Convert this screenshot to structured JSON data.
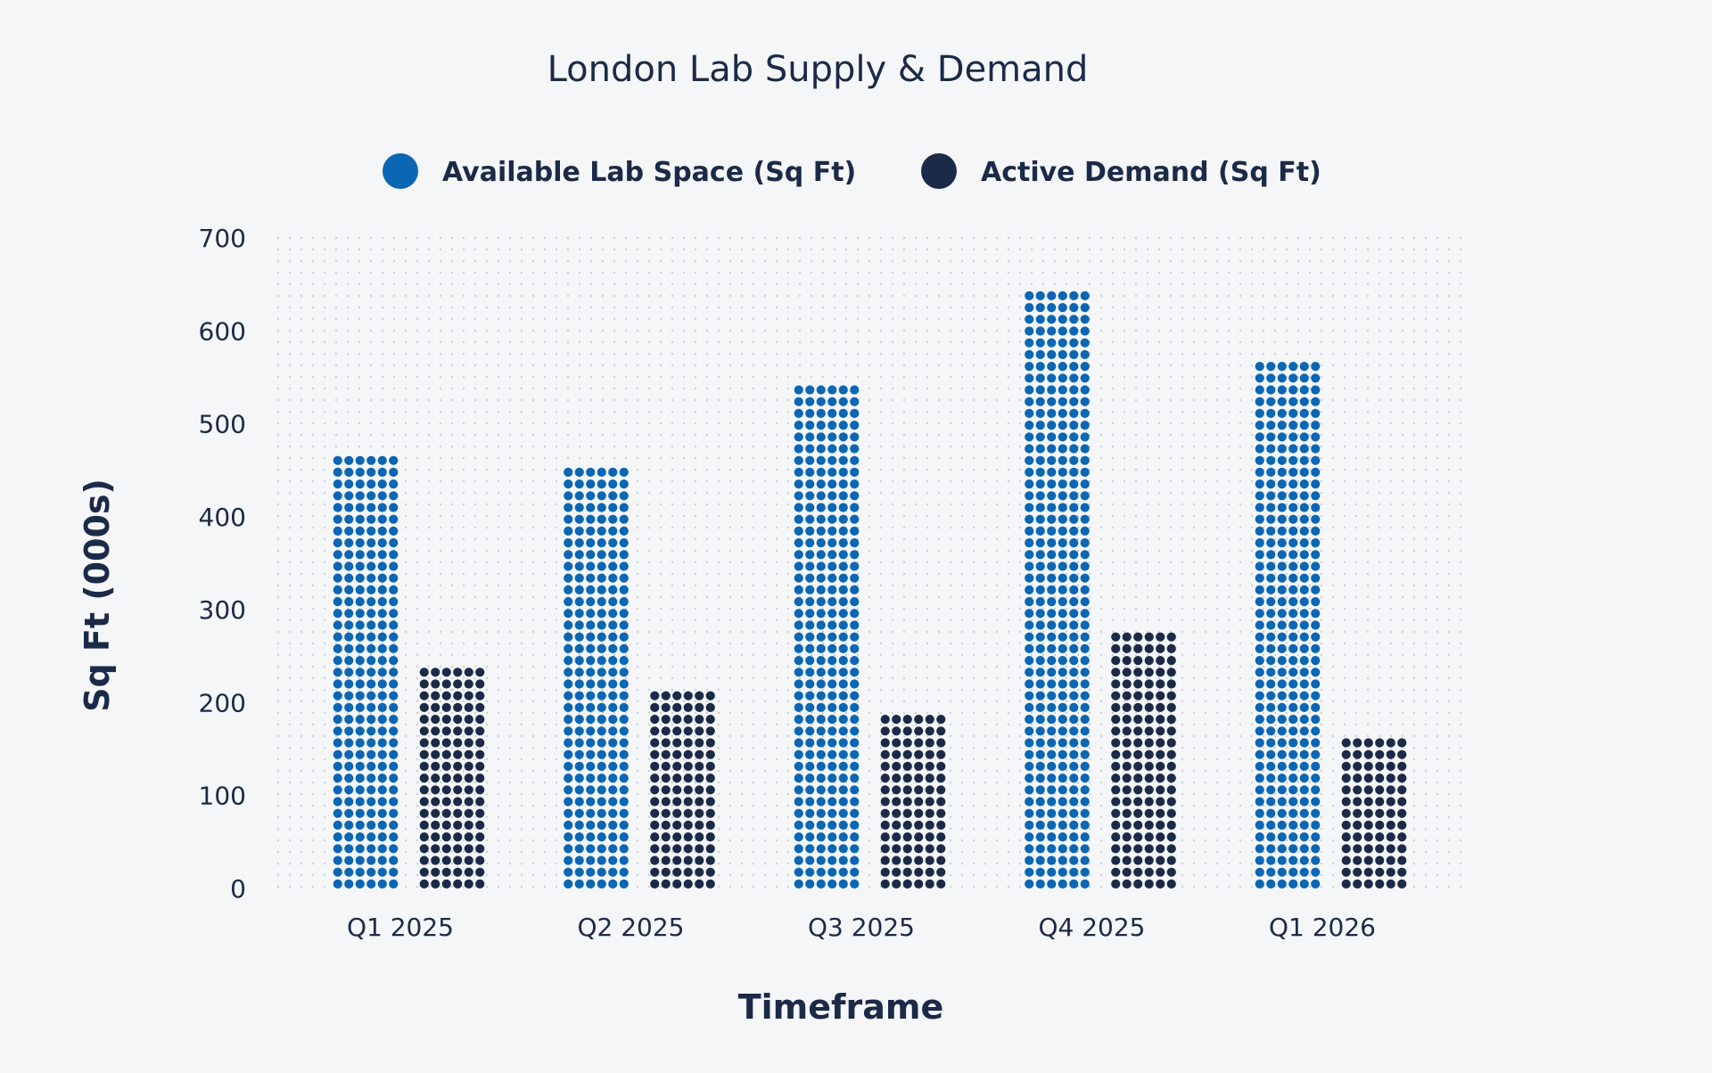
{
  "chart_data": {
    "type": "bar",
    "title": "London Lab Supply & Demand",
    "xlabel": "Timeframe",
    "ylabel": "Sq Ft (000s)",
    "categories": [
      "Q1 2025",
      "Q2 2025",
      "Q3 2025",
      "Q4 2025",
      "Q1 2026"
    ],
    "series": [
      {
        "name": "Available Lab Space (Sq Ft)",
        "color": "#0b66b4",
        "values": [
          475,
          460,
          550,
          645,
          565
        ]
      },
      {
        "name": "Active Demand (Sq Ft)",
        "color": "#1b2a47",
        "values": [
          240,
          210,
          195,
          285,
          165
        ]
      }
    ],
    "ylim": [
      0,
      700
    ],
    "yticks": [
      0,
      100,
      200,
      300,
      400,
      500,
      600,
      700
    ],
    "grid": true,
    "legend_position": "top"
  }
}
